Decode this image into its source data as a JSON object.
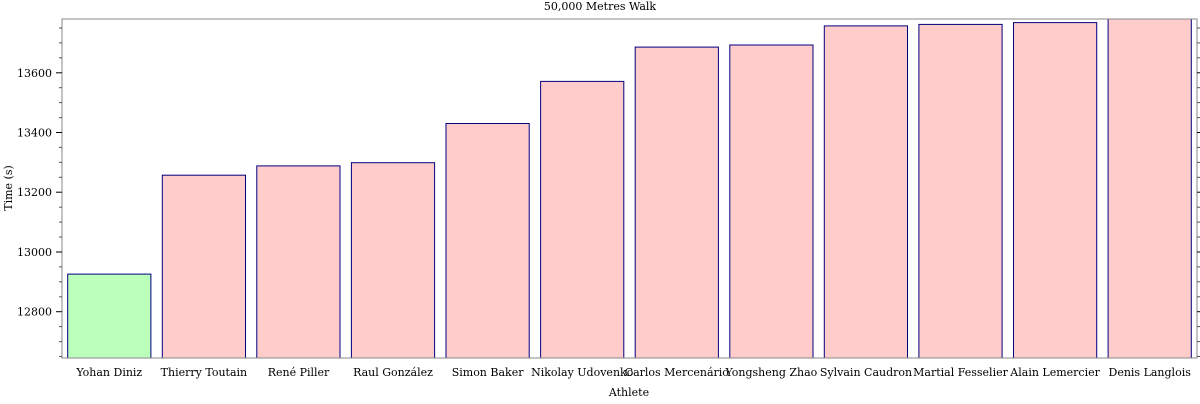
{
  "chart_data": {
    "type": "bar",
    "title": "50,000 Metres Walk",
    "xlabel": "Athlete",
    "ylabel": "Time (s)",
    "categories": [
      "Yohan Diniz",
      "Thierry Toutain",
      "René Piller",
      "Raul González",
      "Simon Baker",
      "Nikolay Udovenko",
      "Carlos Mercenário",
      "Yongsheng Zhao",
      "Sylvain Caudron",
      "Martial Fesselier",
      "Alain Lemercier",
      "Denis Langlois"
    ],
    "values": [
      12926,
      13257,
      13288,
      13299,
      13430,
      13571,
      13686,
      13693,
      13757,
      13762,
      13768,
      13780
    ],
    "highlight_index": 0,
    "ylim": [
      12645,
      13780
    ],
    "yticks": [
      12800,
      13000,
      13200,
      13400,
      13600
    ],
    "grid": false,
    "colors": {
      "highlight_fill": "#bbffbb",
      "bar_fill": "#ffcccc",
      "bar_stroke": "#000080",
      "axis": "#000000"
    }
  }
}
